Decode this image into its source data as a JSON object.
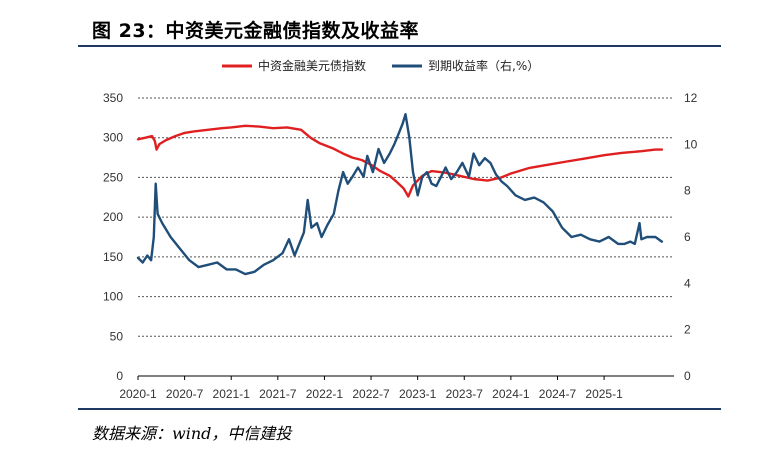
{
  "figure": {
    "title": "图 23：中资美元金融债指数及收益率",
    "source": "数据来源：wind，中信建投"
  },
  "chart_data": {
    "type": "line",
    "title": "中资美元金融债指数及收益率",
    "x_tick_labels": [
      "2020-1",
      "2020-7",
      "2021-1",
      "2021-7",
      "2022-1",
      "2022-7",
      "2023-1",
      "2023-7",
      "2024-1",
      "2024-7",
      "2025-1"
    ],
    "x_range": [
      2020.0,
      2025.75
    ],
    "left_axis": {
      "ylim": [
        0,
        350
      ],
      "ticks": [
        "0",
        "50",
        "100",
        "150",
        "200",
        "250",
        "300",
        "350"
      ]
    },
    "right_axis": {
      "ylim": [
        0,
        12
      ],
      "ticks": [
        "0",
        "2",
        "4",
        "6",
        "8",
        "10",
        "12"
      ]
    },
    "grid": "horizontal-dashed",
    "legend_position": "top",
    "series": [
      {
        "name": "中资金融美元债指数",
        "axis": "left",
        "color": "#e02020",
        "points": [
          [
            2020.0,
            298
          ],
          [
            2020.08,
            300
          ],
          [
            2020.15,
            302
          ],
          [
            2020.18,
            296
          ],
          [
            2020.2,
            285
          ],
          [
            2020.23,
            292
          ],
          [
            2020.3,
            297
          ],
          [
            2020.4,
            302
          ],
          [
            2020.5,
            306
          ],
          [
            2020.6,
            308
          ],
          [
            2020.75,
            310
          ],
          [
            2020.9,
            312
          ],
          [
            2021.0,
            313
          ],
          [
            2021.15,
            315
          ],
          [
            2021.3,
            314
          ],
          [
            2021.45,
            312
          ],
          [
            2021.6,
            313
          ],
          [
            2021.75,
            310
          ],
          [
            2021.85,
            300
          ],
          [
            2021.95,
            293
          ],
          [
            2022.1,
            286
          ],
          [
            2022.2,
            280
          ],
          [
            2022.3,
            275
          ],
          [
            2022.4,
            272
          ],
          [
            2022.5,
            266
          ],
          [
            2022.6,
            258
          ],
          [
            2022.7,
            252
          ],
          [
            2022.78,
            244
          ],
          [
            2022.85,
            236
          ],
          [
            2022.9,
            226
          ],
          [
            2022.95,
            240
          ],
          [
            2023.05,
            252
          ],
          [
            2023.15,
            258
          ],
          [
            2023.3,
            256
          ],
          [
            2023.45,
            252
          ],
          [
            2023.6,
            248
          ],
          [
            2023.75,
            246
          ],
          [
            2023.9,
            250
          ],
          [
            2024.0,
            255
          ],
          [
            2024.2,
            262
          ],
          [
            2024.4,
            266
          ],
          [
            2024.6,
            270
          ],
          [
            2024.8,
            274
          ],
          [
            2025.0,
            278
          ],
          [
            2025.2,
            281
          ],
          [
            2025.4,
            283
          ],
          [
            2025.55,
            285
          ],
          [
            2025.62,
            285
          ]
        ]
      },
      {
        "name": "到期收益率（右,%）",
        "axis": "right",
        "color": "#1f4e79",
        "points": [
          [
            2020.0,
            5.1
          ],
          [
            2020.05,
            4.9
          ],
          [
            2020.1,
            5.2
          ],
          [
            2020.14,
            5.0
          ],
          [
            2020.17,
            6.0
          ],
          [
            2020.19,
            8.3
          ],
          [
            2020.21,
            7.0
          ],
          [
            2020.26,
            6.6
          ],
          [
            2020.35,
            6.0
          ],
          [
            2020.45,
            5.5
          ],
          [
            2020.55,
            5.0
          ],
          [
            2020.65,
            4.7
          ],
          [
            2020.75,
            4.8
          ],
          [
            2020.85,
            4.9
          ],
          [
            2020.95,
            4.6
          ],
          [
            2021.05,
            4.6
          ],
          [
            2021.15,
            4.4
          ],
          [
            2021.25,
            4.5
          ],
          [
            2021.35,
            4.8
          ],
          [
            2021.45,
            5.0
          ],
          [
            2021.55,
            5.3
          ],
          [
            2021.62,
            5.9
          ],
          [
            2021.68,
            5.2
          ],
          [
            2021.72,
            5.6
          ],
          [
            2021.78,
            6.2
          ],
          [
            2021.82,
            7.6
          ],
          [
            2021.86,
            6.4
          ],
          [
            2021.92,
            6.6
          ],
          [
            2021.97,
            6.0
          ],
          [
            2022.03,
            6.5
          ],
          [
            2022.1,
            7.0
          ],
          [
            2022.15,
            8.0
          ],
          [
            2022.2,
            8.8
          ],
          [
            2022.25,
            8.3
          ],
          [
            2022.3,
            8.6
          ],
          [
            2022.36,
            9.0
          ],
          [
            2022.42,
            8.6
          ],
          [
            2022.46,
            9.5
          ],
          [
            2022.52,
            8.8
          ],
          [
            2022.58,
            9.8
          ],
          [
            2022.64,
            9.2
          ],
          [
            2022.7,
            9.6
          ],
          [
            2022.75,
            10.0
          ],
          [
            2022.8,
            10.5
          ],
          [
            2022.84,
            10.9
          ],
          [
            2022.87,
            11.3
          ],
          [
            2022.91,
            10.3
          ],
          [
            2022.95,
            8.8
          ],
          [
            2023.0,
            7.8
          ],
          [
            2023.05,
            8.6
          ],
          [
            2023.1,
            8.8
          ],
          [
            2023.15,
            8.3
          ],
          [
            2023.2,
            8.2
          ],
          [
            2023.25,
            8.6
          ],
          [
            2023.3,
            9.0
          ],
          [
            2023.36,
            8.5
          ],
          [
            2023.42,
            8.8
          ],
          [
            2023.48,
            9.2
          ],
          [
            2023.55,
            8.6
          ],
          [
            2023.6,
            9.6
          ],
          [
            2023.66,
            9.1
          ],
          [
            2023.72,
            9.4
          ],
          [
            2023.78,
            9.2
          ],
          [
            2023.84,
            8.7
          ],
          [
            2023.9,
            8.4
          ],
          [
            2023.96,
            8.2
          ],
          [
            2024.05,
            7.8
          ],
          [
            2024.15,
            7.6
          ],
          [
            2024.25,
            7.7
          ],
          [
            2024.35,
            7.5
          ],
          [
            2024.45,
            7.1
          ],
          [
            2024.55,
            6.4
          ],
          [
            2024.65,
            6.0
          ],
          [
            2024.75,
            6.1
          ],
          [
            2024.85,
            5.9
          ],
          [
            2024.95,
            5.8
          ],
          [
            2025.05,
            6.0
          ],
          [
            2025.15,
            5.7
          ],
          [
            2025.22,
            5.7
          ],
          [
            2025.28,
            5.8
          ],
          [
            2025.33,
            5.7
          ],
          [
            2025.38,
            6.6
          ],
          [
            2025.4,
            5.9
          ],
          [
            2025.46,
            6.0
          ],
          [
            2025.55,
            6.0
          ],
          [
            2025.62,
            5.8
          ]
        ]
      }
    ]
  }
}
